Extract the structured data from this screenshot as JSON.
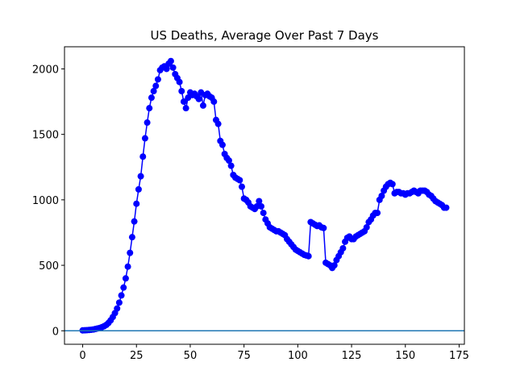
{
  "chart_data": {
    "type": "line",
    "title": "US Deaths, Average Over Past 7 Days",
    "x": [
      0,
      1,
      2,
      3,
      4,
      5,
      6,
      7,
      8,
      9,
      10,
      11,
      12,
      13,
      14,
      15,
      16,
      17,
      18,
      19,
      20,
      21,
      22,
      23,
      24,
      25,
      26,
      27,
      28,
      29,
      30,
      31,
      32,
      33,
      34,
      35,
      36,
      37,
      38,
      39,
      40,
      41,
      42,
      43,
      44,
      45,
      46,
      47,
      48,
      49,
      50,
      51,
      52,
      53,
      54,
      55,
      56,
      57,
      58,
      59,
      60,
      61,
      62,
      63,
      64,
      65,
      66,
      67,
      68,
      69,
      70,
      71,
      72,
      73,
      74,
      75,
      76,
      77,
      78,
      79,
      80,
      81,
      82,
      83,
      84,
      85,
      86,
      87,
      88,
      89,
      90,
      91,
      92,
      93,
      94,
      95,
      96,
      97,
      98,
      99,
      100,
      101,
      102,
      103,
      104,
      105,
      106,
      107,
      108,
      109,
      110,
      111,
      112,
      113,
      114,
      115,
      116,
      117,
      118,
      119,
      120,
      121,
      122,
      123,
      124,
      125,
      126,
      127,
      128,
      129,
      130,
      131,
      132,
      133,
      134,
      135,
      136,
      137,
      138,
      139,
      140,
      141,
      142,
      143,
      144,
      145,
      146,
      147,
      148,
      149,
      150,
      151,
      152,
      153,
      154,
      155,
      156,
      157,
      158,
      159,
      160,
      161,
      162,
      163,
      164,
      165,
      166,
      167,
      168,
      169
    ],
    "values": [
      3,
      4,
      5,
      6,
      8,
      10,
      14,
      18,
      22,
      28,
      35,
      45,
      60,
      80,
      105,
      135,
      170,
      215,
      270,
      330,
      400,
      490,
      595,
      715,
      835,
      970,
      1080,
      1180,
      1330,
      1470,
      1590,
      1700,
      1780,
      1830,
      1870,
      1920,
      1990,
      2010,
      2020,
      2000,
      2040,
      2060,
      2010,
      1960,
      1930,
      1900,
      1830,
      1750,
      1700,
      1780,
      1820,
      1800,
      1810,
      1790,
      1770,
      1820,
      1720,
      1800,
      1810,
      1790,
      1780,
      1750,
      1610,
      1580,
      1450,
      1420,
      1350,
      1320,
      1300,
      1260,
      1190,
      1170,
      1160,
      1150,
      1100,
      1010,
      1000,
      980,
      950,
      940,
      930,
      950,
      990,
      950,
      900,
      850,
      820,
      790,
      780,
      770,
      760,
      760,
      750,
      740,
      730,
      700,
      680,
      660,
      640,
      620,
      610,
      600,
      590,
      580,
      575,
      570,
      830,
      820,
      810,
      800,
      805,
      790,
      785,
      520,
      510,
      500,
      480,
      500,
      540,
      570,
      600,
      630,
      680,
      710,
      720,
      700,
      700,
      720,
      730,
      740,
      750,
      760,
      790,
      830,
      850,
      880,
      900,
      900,
      1000,
      1030,
      1070,
      1100,
      1120,
      1130,
      1120,
      1050,
      1060,
      1060,
      1050,
      1050,
      1040,
      1050,
      1050,
      1060,
      1070,
      1060,
      1050,
      1070,
      1070,
      1070,
      1060,
      1040,
      1030,
      1010,
      990,
      980,
      970,
      960,
      940,
      940
    ],
    "color": "#0000ff",
    "hline": 0,
    "hline_color": "#1f77b4",
    "xlim": [
      -8.45,
      177.45
    ],
    "xticks": [
      0,
      25,
      50,
      75,
      100,
      125,
      150,
      175
    ],
    "ylim": [
      -103,
      2169
    ],
    "yticks": [
      0,
      500,
      1000,
      1500,
      2000
    ]
  }
}
